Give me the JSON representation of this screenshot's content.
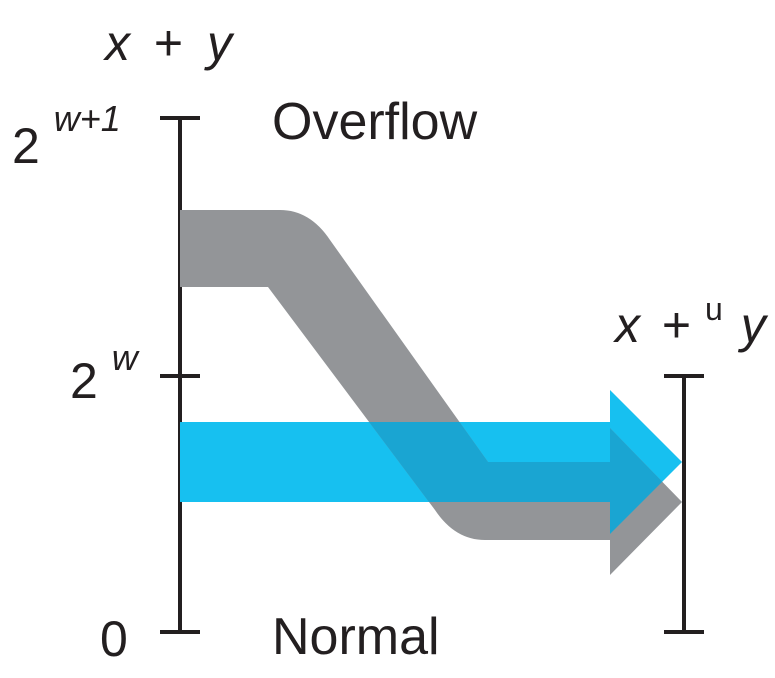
{
  "left_axis": {
    "title": {
      "x": "x",
      "op": "+",
      "y": "y"
    },
    "ticks": [
      {
        "base": "2",
        "exponent": "w+1"
      },
      {
        "base": "2",
        "exponent": "w"
      },
      {
        "base": "0",
        "exponent": ""
      }
    ]
  },
  "right_axis": {
    "title": {
      "x": "x",
      "op": "+",
      "sup": "u",
      "y": "y"
    }
  },
  "regions": {
    "upper": "Overflow",
    "lower": "Normal"
  },
  "colors": {
    "overflow_arrow": "#939598",
    "normal_arrow": "#17c0f0",
    "overlap": "#1aa5d2",
    "axis": "#231f20"
  }
}
